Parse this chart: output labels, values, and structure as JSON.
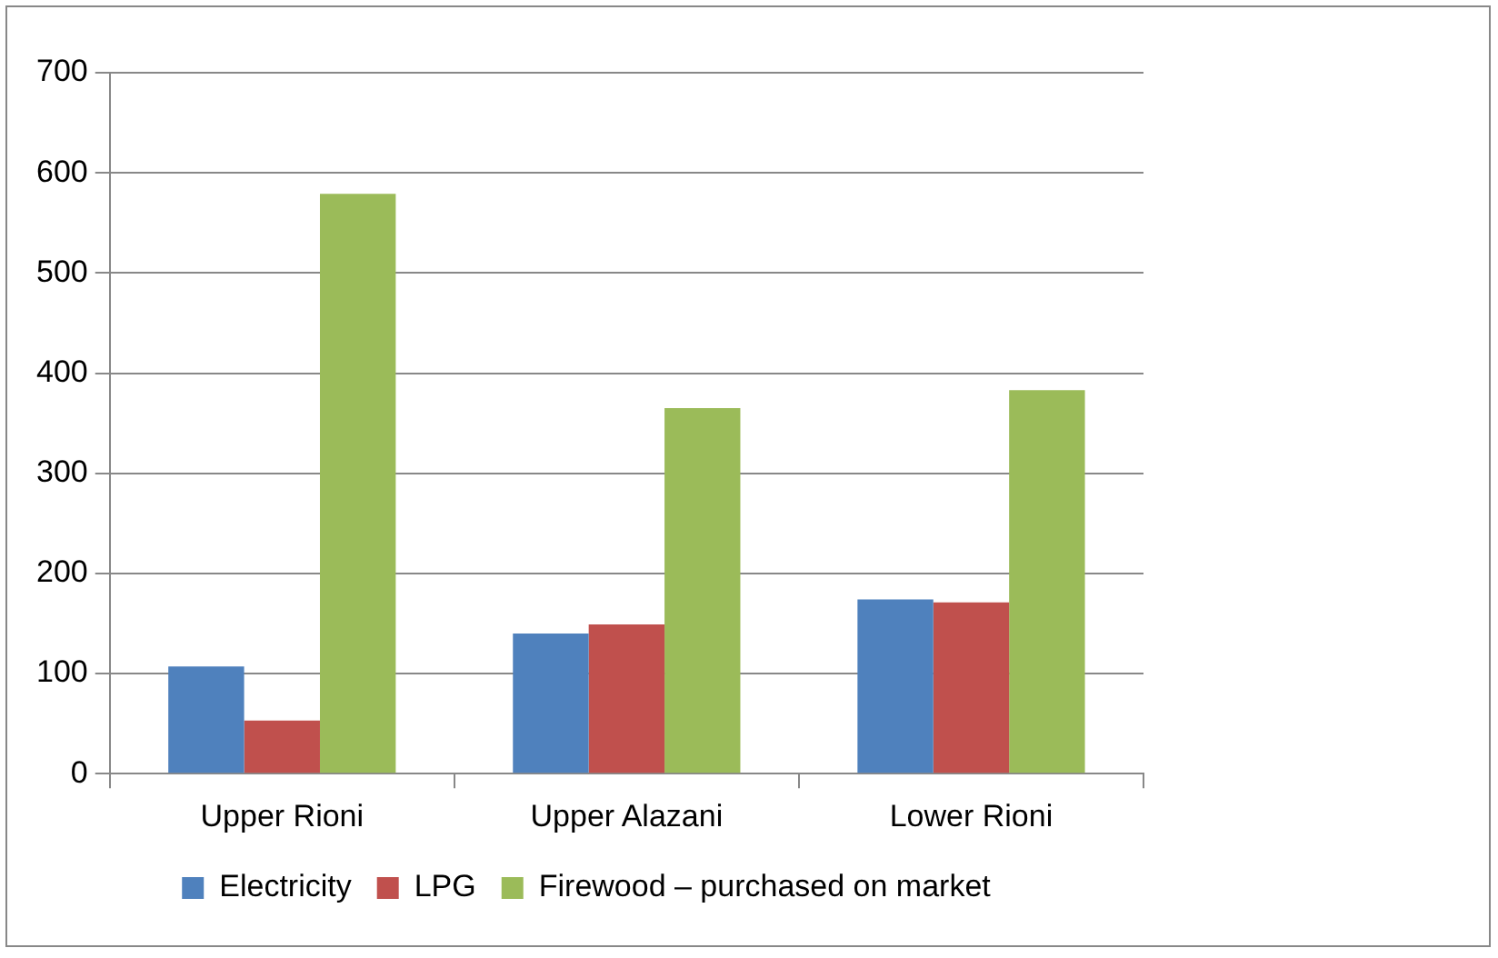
{
  "chart_data": {
    "type": "bar",
    "categories": [
      "Upper Rioni",
      "Upper Alazani",
      "Lower Rioni"
    ],
    "series": [
      {
        "name": "Electricity",
        "color": "#4f81bd",
        "values": [
          107,
          140,
          174
        ]
      },
      {
        "name": "LPG",
        "color": "#c0504d",
        "values": [
          53,
          149,
          171
        ]
      },
      {
        "name": "Firewood – purchased on market",
        "color": "#9bbb59",
        "values": [
          579,
          365,
          383
        ]
      }
    ],
    "ylim": [
      0,
      700
    ],
    "yticks": [
      0,
      100,
      200,
      300,
      400,
      500,
      600,
      700
    ],
    "grid": "y",
    "legend": "bottom"
  }
}
